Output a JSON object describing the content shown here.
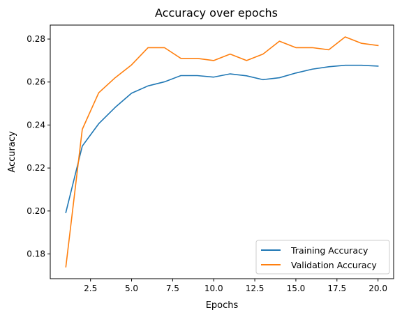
{
  "chart_data": {
    "type": "line",
    "title": "Accuracy over epochs",
    "xlabel": "Epochs",
    "ylabel": "Accuracy",
    "xlim": [
      0.05,
      20.95
    ],
    "ylim": [
      0.1685,
      0.2865
    ],
    "xticks": [
      2.5,
      5.0,
      7.5,
      10.0,
      12.5,
      15.0,
      17.5,
      20.0
    ],
    "xtick_labels": [
      "2.5",
      "5.0",
      "7.5",
      "10.0",
      "12.5",
      "15.0",
      "17.5",
      "20.0"
    ],
    "yticks": [
      0.18,
      0.2,
      0.22,
      0.24,
      0.26,
      0.28
    ],
    "ytick_labels": [
      "0.18",
      "0.20",
      "0.22",
      "0.24",
      "0.26",
      "0.28"
    ],
    "grid": false,
    "legend_position": "lower-right",
    "x": [
      1,
      2,
      3,
      4,
      5,
      6,
      7,
      8,
      9,
      10,
      11,
      12,
      13,
      14,
      15,
      16,
      17,
      18,
      19,
      20
    ],
    "series": [
      {
        "name": "Training Accuracy",
        "color": "#1f77b4",
        "values": [
          0.1993,
          0.2302,
          0.2406,
          0.2482,
          0.2548,
          0.2582,
          0.2601,
          0.263,
          0.263,
          0.2623,
          0.2638,
          0.2629,
          0.2611,
          0.262,
          0.2642,
          0.266,
          0.2671,
          0.2678,
          0.2678,
          0.2674
        ]
      },
      {
        "name": "Validation Accuracy",
        "color": "#ff7f0e",
        "values": [
          0.174,
          0.238,
          0.255,
          0.262,
          0.268,
          0.276,
          0.276,
          0.271,
          0.271,
          0.27,
          0.273,
          0.27,
          0.273,
          0.279,
          0.276,
          0.276,
          0.275,
          0.281,
          0.278,
          0.277
        ]
      }
    ]
  }
}
